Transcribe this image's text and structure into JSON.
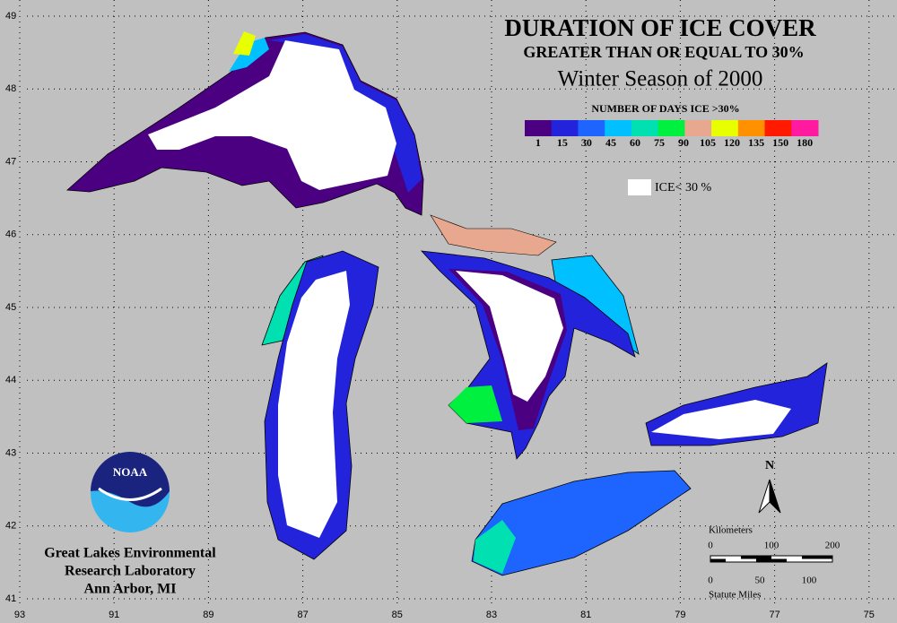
{
  "title": "DURATION OF ICE COVER",
  "subtitle": "GREATER THAN OR EQUAL TO 30%",
  "season": "Winter Season of 2000",
  "legend": {
    "title": "NUMBER OF DAYS ICE >30%",
    "colors": [
      "#4b0082",
      "#2323dc",
      "#1e64ff",
      "#00c0ff",
      "#00e0b0",
      "#00f040",
      "#e8a890",
      "#e8ff00",
      "#ff9000",
      "#ff1a00",
      "#ff1aa0"
    ],
    "labels": [
      "1",
      "15",
      "30",
      "45",
      "60",
      "75",
      "90",
      "105",
      "120",
      "135",
      "150",
      "180"
    ],
    "white_label": "ICE< 30 %"
  },
  "latitudes": [
    "49",
    "48",
    "47",
    "46",
    "45",
    "44",
    "43",
    "42",
    "41"
  ],
  "longitudes": [
    "93",
    "91",
    "89",
    "87",
    "85",
    "83",
    "81",
    "79",
    "77",
    "75"
  ],
  "logo": "NOAA",
  "credit": [
    "Great Lakes Environmental",
    "Research Laboratory",
    "Ann Arbor, MI"
  ],
  "north": "N",
  "scale": {
    "km_title": "Kilometers",
    "km_labels": [
      "0",
      "100",
      "200"
    ],
    "mi_title": "Statute Miles",
    "mi_labels": [
      "0",
      "50",
      "100"
    ]
  }
}
